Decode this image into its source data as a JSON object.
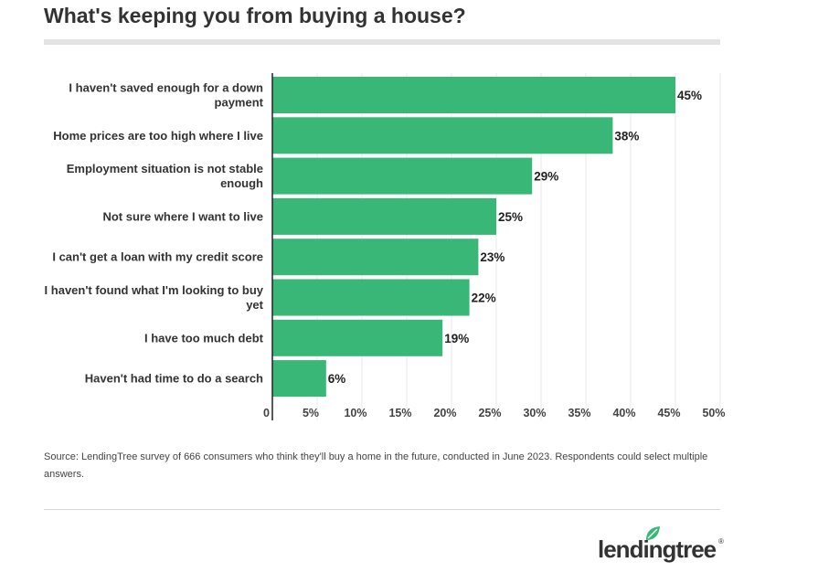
{
  "title": "What's keeping you from buying a house?",
  "source": "Source: LendingTree survey of 666 consumers who think they'll buy a home in the future, conducted in June 2023. Respondents could select multiple answers.",
  "logo": {
    "text": "lendingtree",
    "reg": "®",
    "icon": "leaf-icon"
  },
  "chart_data": {
    "type": "bar",
    "orientation": "horizontal",
    "categories": [
      [
        "I haven't saved enough for a down",
        "payment"
      ],
      [
        "Home prices are too high where I live"
      ],
      [
        "Employment situation is not stable",
        "enough"
      ],
      [
        "Not sure where I want to live"
      ],
      [
        "I can't get a loan with my credit score"
      ],
      [
        "I haven't found what I'm looking to buy",
        "yet"
      ],
      [
        "I have too much debt"
      ],
      [
        "Haven't had time to do a search"
      ]
    ],
    "values": [
      45,
      38,
      29,
      25,
      23,
      22,
      19,
      6
    ],
    "value_labels": [
      "45%",
      "38%",
      "29%",
      "25%",
      "23%",
      "22%",
      "19%",
      "6%"
    ],
    "xlim": [
      0,
      50
    ],
    "x_ticks": [
      0,
      5,
      10,
      15,
      20,
      25,
      30,
      35,
      40,
      45,
      50
    ],
    "x_tick_labels": [
      "0",
      "5%",
      "10%",
      "15%",
      "20%",
      "25%",
      "30%",
      "35%",
      "40%",
      "45%",
      "50%"
    ],
    "bar_color": "#38b776",
    "grid": true
  }
}
